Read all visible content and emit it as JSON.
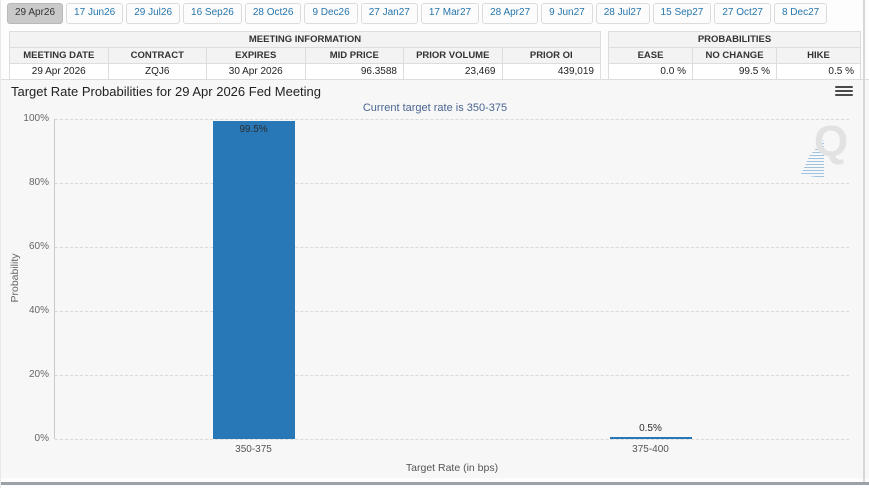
{
  "tabs": [
    {
      "label": "29 Apr26",
      "selected": true
    },
    {
      "label": "17 Jun26",
      "selected": false
    },
    {
      "label": "29 Jul26",
      "selected": false
    },
    {
      "label": "16 Sep26",
      "selected": false
    },
    {
      "label": "28 Oct26",
      "selected": false
    },
    {
      "label": "9 Dec26",
      "selected": false
    },
    {
      "label": "27 Jan27",
      "selected": false
    },
    {
      "label": "17 Mar27",
      "selected": false
    },
    {
      "label": "28 Apr27",
      "selected": false
    },
    {
      "label": "9 Jun27",
      "selected": false
    },
    {
      "label": "28 Jul27",
      "selected": false
    },
    {
      "label": "15 Sep27",
      "selected": false
    },
    {
      "label": "27 Oct27",
      "selected": false
    },
    {
      "label": "8 Dec27",
      "selected": false
    }
  ],
  "meeting_information": {
    "title": "MEETING INFORMATION",
    "columns": [
      "MEETING DATE",
      "CONTRACT",
      "EXPIRES",
      "MID PRICE",
      "PRIOR VOLUME",
      "PRIOR OI"
    ],
    "row": [
      "29 Apr 2026",
      "ZQJ6",
      "30 Apr 2026",
      "96.3588",
      "23,469",
      "439,019"
    ]
  },
  "probabilities": {
    "title": "PROBABILITIES",
    "columns": [
      "EASE",
      "NO CHANGE",
      "HIKE"
    ],
    "row": [
      "0.0 %",
      "99.5 %",
      "0.5 %"
    ]
  },
  "chart": {
    "title": "Target Rate Probabilities for 29 Apr 2026 Fed Meeting",
    "subtitle": "Current target rate is 350-375"
  },
  "chart_data": {
    "type": "bar",
    "categories": [
      "350-375",
      "375-400"
    ],
    "values": [
      99.5,
      0.5
    ],
    "bar_labels": [
      "99.5%",
      "0.5%"
    ],
    "title": "Target Rate Probabilities for 29 Apr 2026 Fed Meeting",
    "subtitle": "Current target rate is 350-375",
    "xlabel": "Target Rate (in bps)",
    "ylabel": "Probability",
    "ylim": [
      0,
      100
    ],
    "yticks": [
      "0%",
      "20%",
      "40%",
      "60%",
      "80%",
      "100%"
    ],
    "bar_color": "#2878b8",
    "grid": "dashed horizontal",
    "legend": "none"
  },
  "icons": {
    "menu": "hamburger-menu-icon",
    "watermark_letter": "Q"
  }
}
